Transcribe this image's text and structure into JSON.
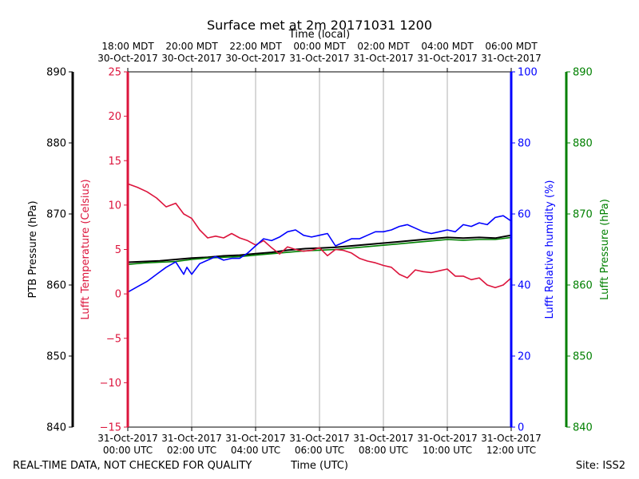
{
  "chart_data": {
    "type": "line",
    "title": "Surface met at 2m 20171031 1200",
    "top_axis_label": "Time (local)",
    "top_ticks": [
      {
        "line1": "18:00 MDT",
        "line2": "30-Oct-2017"
      },
      {
        "line1": "20:00 MDT",
        "line2": "30-Oct-2017"
      },
      {
        "line1": "22:00 MDT",
        "line2": "30-Oct-2017"
      },
      {
        "line1": "00:00 MDT",
        "line2": "31-Oct-2017"
      },
      {
        "line1": "02:00 MDT",
        "line2": "31-Oct-2017"
      },
      {
        "line1": "04:00 MDT",
        "line2": "31-Oct-2017"
      },
      {
        "line1": "06:00 MDT",
        "line2": "31-Oct-2017"
      }
    ],
    "bottom_ticks": [
      {
        "line1": "31-Oct-2017",
        "line2": "00:00 UTC"
      },
      {
        "line1": "31-Oct-2017",
        "line2": "02:00 UTC"
      },
      {
        "line1": "31-Oct-2017",
        "line2": "04:00 UTC"
      },
      {
        "line1": "31-Oct-2017",
        "line2": "06:00 UTC"
      },
      {
        "line1": "31-Oct-2017",
        "line2": "08:00 UTC"
      },
      {
        "line1": "31-Oct-2017",
        "line2": "10:00 UTC"
      },
      {
        "line1": "31-Oct-2017",
        "line2": "12:00 UTC"
      }
    ],
    "xlabel": "Time (UTC)",
    "xlim": [
      0,
      12
    ],
    "footer_left": "REAL-TIME DATA, NOT CHECKED FOR QUALITY",
    "footer_right": "Site: ISS2",
    "axes": {
      "ptb": {
        "label": "PTB Pressure (hPa)",
        "lim": [
          840,
          890
        ],
        "ticks": [
          840,
          850,
          860,
          870,
          880,
          890
        ],
        "color": "#000000"
      },
      "temp": {
        "label": "Lufft Temperature (Celsius)",
        "lim": [
          -15,
          25
        ],
        "ticks": [
          -15,
          -10,
          -5,
          0,
          5,
          10,
          15,
          20,
          25
        ],
        "color": "#dc143c"
      },
      "rh": {
        "label": "Lufft Relative humidity (%)",
        "lim": [
          0,
          100
        ],
        "ticks": [
          0,
          20,
          40,
          60,
          80,
          100
        ],
        "color": "#0000ff"
      },
      "lufft_p": {
        "label": "Lufft Pressure (hPa)",
        "lim": [
          840,
          890
        ],
        "ticks": [
          840,
          850,
          860,
          870,
          880,
          890
        ],
        "color": "#008000"
      }
    },
    "series": [
      {
        "name": "PTB Pressure",
        "axis": "ptb",
        "color": "#000000",
        "x": [
          0,
          0.5,
          1,
          1.5,
          2,
          2.5,
          3,
          3.5,
          4,
          4.5,
          5,
          5.5,
          6,
          6.5,
          7,
          7.5,
          8,
          8.5,
          9,
          9.5,
          10,
          10.5,
          11,
          11.5,
          12
        ],
        "values": [
          863.2,
          863.3,
          863.4,
          863.6,
          863.8,
          863.9,
          864.1,
          864.2,
          864.4,
          864.6,
          864.9,
          865.1,
          865.2,
          865.3,
          865.5,
          865.7,
          865.9,
          866.1,
          866.3,
          866.5,
          866.7,
          866.6,
          866.7,
          866.6,
          867.0
        ]
      },
      {
        "name": "Lufft Pressure",
        "axis": "lufft_p",
        "color": "#008000",
        "x": [
          0,
          0.5,
          1,
          1.5,
          2,
          2.5,
          3,
          3.5,
          4,
          4.5,
          5,
          5.5,
          6,
          6.5,
          7,
          7.5,
          8,
          8.5,
          9,
          9.5,
          10,
          10.5,
          11,
          11.5,
          12
        ],
        "values": [
          862.9,
          863.1,
          863.2,
          863.3,
          863.6,
          863.8,
          863.9,
          864.0,
          864.2,
          864.4,
          864.6,
          864.8,
          864.9,
          865.0,
          865.2,
          865.4,
          865.6,
          865.8,
          866.0,
          866.2,
          866.4,
          866.3,
          866.4,
          866.4,
          866.7
        ]
      },
      {
        "name": "Lufft Temperature",
        "axis": "temp",
        "color": "#dc143c",
        "x": [
          0,
          0.3,
          0.6,
          0.9,
          1.2,
          1.5,
          1.75,
          1.85,
          2.0,
          2.25,
          2.5,
          2.75,
          3.0,
          3.25,
          3.5,
          3.75,
          4.0,
          4.25,
          4.5,
          4.75,
          5.0,
          5.25,
          5.5,
          5.75,
          6.0,
          6.25,
          6.5,
          6.75,
          7.0,
          7.25,
          7.5,
          7.75,
          8.0,
          8.25,
          8.5,
          8.75,
          9.0,
          9.25,
          9.5,
          9.75,
          10.0,
          10.25,
          10.5,
          10.75,
          11.0,
          11.25,
          11.5,
          11.75,
          12.0
        ],
        "values": [
          12.4,
          12.0,
          11.5,
          10.8,
          9.8,
          10.2,
          9.0,
          8.8,
          8.5,
          7.2,
          6.3,
          6.5,
          6.3,
          6.8,
          6.3,
          6.0,
          5.5,
          6.0,
          5.2,
          4.5,
          5.3,
          5.0,
          4.8,
          4.9,
          5.2,
          4.3,
          5.0,
          4.9,
          4.6,
          4.0,
          3.7,
          3.5,
          3.2,
          3.0,
          2.2,
          1.8,
          2.7,
          2.5,
          2.4,
          2.6,
          2.8,
          2.0,
          2.0,
          1.6,
          1.8,
          1.0,
          0.7,
          1.0,
          1.8
        ]
      },
      {
        "name": "Lufft Relative humidity",
        "axis": "rh",
        "color": "#0000ff",
        "x": [
          0,
          0.3,
          0.6,
          0.9,
          1.2,
          1.5,
          1.75,
          1.85,
          2.0,
          2.25,
          2.5,
          2.75,
          3.0,
          3.25,
          3.5,
          3.75,
          4.0,
          4.25,
          4.5,
          4.75,
          5.0,
          5.25,
          5.5,
          5.75,
          6.0,
          6.25,
          6.5,
          6.75,
          7.0,
          7.25,
          7.5,
          7.75,
          8.0,
          8.25,
          8.5,
          8.75,
          9.0,
          9.25,
          9.5,
          9.75,
          10.0,
          10.25,
          10.5,
          10.75,
          11.0,
          11.25,
          11.5,
          11.75,
          12.0
        ],
        "values": [
          38,
          39.5,
          41,
          43,
          45,
          46.5,
          43,
          45,
          43,
          46,
          47,
          48,
          47,
          47.5,
          47.5,
          49,
          51,
          53,
          52.5,
          53.5,
          55,
          55.5,
          54,
          53.5,
          54,
          54.5,
          51,
          52,
          53,
          53,
          54,
          55,
          55,
          55.5,
          56.5,
          57,
          56,
          55,
          54.5,
          55,
          55.5,
          55,
          57,
          56.5,
          57.5,
          57,
          59,
          59.5,
          58
        ]
      }
    ]
  }
}
